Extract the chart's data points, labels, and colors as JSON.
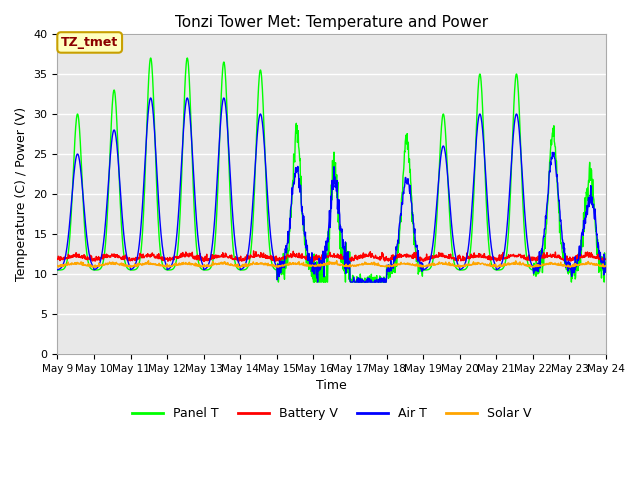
{
  "title": "Tonzi Tower Met: Temperature and Power",
  "xlabel": "Time",
  "ylabel": "Temperature (C) / Power (V)",
  "ylim": [
    0,
    40
  ],
  "yticks": [
    0,
    5,
    10,
    15,
    20,
    25,
    30,
    35,
    40
  ],
  "x_start_day": 9,
  "x_end_day": 24,
  "x_tick_days": [
    9,
    10,
    11,
    12,
    13,
    14,
    15,
    16,
    17,
    18,
    19,
    20,
    21,
    22,
    23,
    24
  ],
  "annotation_text": "TZ_tmet",
  "annotation_color": "#8B0000",
  "annotation_bg": "#FFFFC0",
  "annotation_border": "#C8A000",
  "colors": {
    "panel_t": "#00FF00",
    "battery_v": "#FF0000",
    "air_t": "#0000FF",
    "solar_v": "#FFA500"
  },
  "legend_labels": [
    "Panel T",
    "Battery V",
    "Air T",
    "Solar V"
  ],
  "bg_color": "#E8E8E8",
  "grid_color": "#FFFFFF",
  "line_width": 1.0,
  "figsize": [
    6.4,
    4.8
  ],
  "dpi": 100
}
